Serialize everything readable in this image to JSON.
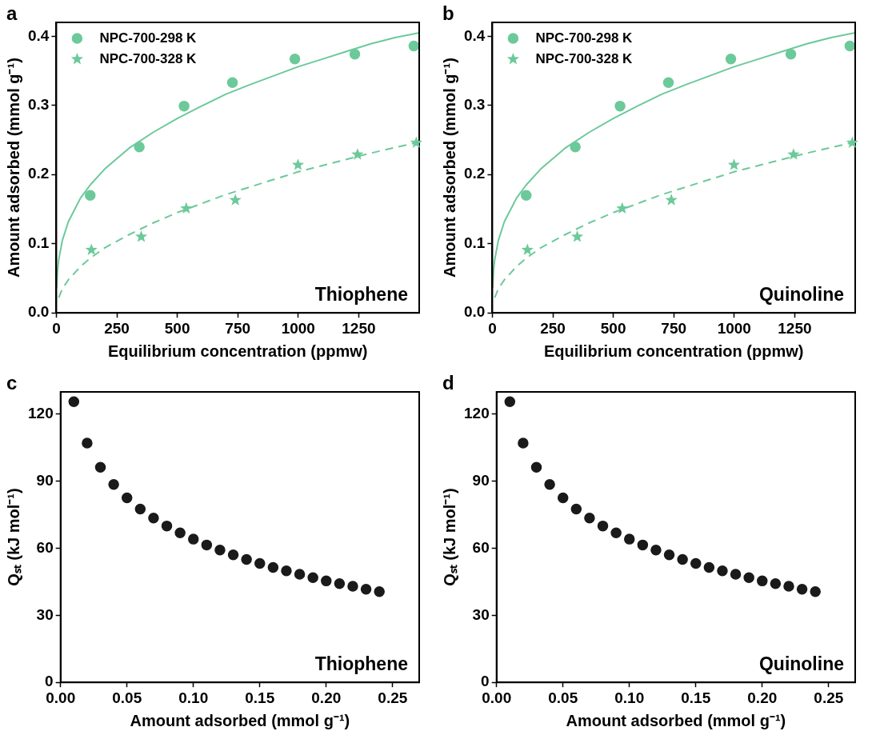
{
  "chart_data": [
    {
      "type": "scatter",
      "xlabel": "Equilibrium concentration (ppmw)",
      "ylabel": "Amount adsorbed (mmol g⁻¹)",
      "annotations": [
        "a",
        "Thiophene"
      ],
      "legend": "top left",
      "xlim": [
        0,
        1500
      ],
      "ylim": [
        0,
        0.42
      ],
      "xticks": [
        0,
        250,
        500,
        750,
        1000,
        1250
      ],
      "yticks": [
        {
          "value": 0,
          "label": "0.0"
        },
        0.1,
        0.2,
        0.3,
        0.4
      ],
      "series": [
        {
          "name": "NPC-700-298 K",
          "type": "scatter",
          "marker": "circle",
          "color": "#6cc99a",
          "x": [
            140,
            343,
            528,
            728,
            986,
            1234,
            1478
          ],
          "values": [
            0.17,
            0.24,
            0.299,
            0.333,
            0.367,
            0.374,
            0.386
          ]
        },
        {
          "name": "NPC-700-328 K",
          "type": "scatter",
          "marker": "star",
          "color": "#6cc99a",
          "x": [
            145,
            351,
            537,
            740,
            999,
            1245,
            1488
          ],
          "values": [
            0.091,
            0.11,
            0.151,
            0.163,
            0.214,
            0.229,
            0.246
          ]
        },
        {
          "type": "line",
          "line_style": "solid",
          "marker": "none",
          "color": "#6cc99a",
          "x": [
            1,
            5,
            10,
            25,
            50,
            100,
            140,
            200,
            300,
            400,
            500,
            600,
            700,
            800,
            900,
            1000,
            1100,
            1200,
            1300,
            1400,
            1500
          ],
          "values": [
            0.036,
            0.062,
            0.077,
            0.105,
            0.132,
            0.166,
            0.185,
            0.208,
            0.238,
            0.261,
            0.281,
            0.299,
            0.316,
            0.33,
            0.343,
            0.356,
            0.367,
            0.378,
            0.389,
            0.398,
            0.405
          ]
        },
        {
          "type": "line",
          "line_style": "dashed",
          "marker": "none",
          "color": "#6cc99a",
          "x": [
            10,
            25,
            50,
            100,
            140,
            200,
            300,
            400,
            500,
            600,
            700,
            800,
            900,
            1000,
            1100,
            1200,
            1300,
            1400,
            1500
          ],
          "values": [
            0.022,
            0.035,
            0.048,
            0.067,
            0.079,
            0.094,
            0.113,
            0.13,
            0.145,
            0.158,
            0.171,
            0.182,
            0.193,
            0.204,
            0.213,
            0.222,
            0.231,
            0.239,
            0.247
          ]
        }
      ]
    },
    {
      "type": "scatter",
      "xlabel": "Equilibrium concentration (ppmw)",
      "ylabel": "Amount adsorbed (mmol g⁻¹)",
      "annotations": [
        "b",
        "Quinoline"
      ],
      "legend": "top left",
      "xlim": [
        0,
        1500
      ],
      "ylim": [
        0,
        0.42
      ],
      "xticks": [
        0,
        250,
        500,
        750,
        1000,
        1250
      ],
      "yticks": [
        {
          "value": 0,
          "label": "0.0"
        },
        0.1,
        0.2,
        0.3,
        0.4
      ],
      "series": [
        {
          "name": "NPC-700-298 K",
          "type": "scatter",
          "marker": "circle",
          "color": "#6cc99a",
          "x": [
            140,
            343,
            528,
            728,
            986,
            1234,
            1478
          ],
          "values": [
            0.17,
            0.24,
            0.299,
            0.333,
            0.367,
            0.374,
            0.386
          ]
        },
        {
          "name": "NPC-700-328 K",
          "type": "scatter",
          "marker": "star",
          "color": "#6cc99a",
          "x": [
            145,
            351,
            537,
            740,
            999,
            1245,
            1488
          ],
          "values": [
            0.091,
            0.11,
            0.151,
            0.163,
            0.214,
            0.229,
            0.246
          ]
        },
        {
          "type": "line",
          "line_style": "solid",
          "marker": "none",
          "color": "#6cc99a",
          "x": [
            1,
            5,
            10,
            25,
            50,
            100,
            140,
            200,
            300,
            400,
            500,
            600,
            700,
            800,
            900,
            1000,
            1100,
            1200,
            1300,
            1400,
            1500
          ],
          "values": [
            0.036,
            0.062,
            0.077,
            0.105,
            0.132,
            0.166,
            0.185,
            0.208,
            0.238,
            0.261,
            0.281,
            0.299,
            0.316,
            0.33,
            0.343,
            0.356,
            0.367,
            0.378,
            0.389,
            0.398,
            0.405
          ]
        },
        {
          "type": "line",
          "line_style": "dashed",
          "marker": "none",
          "color": "#6cc99a",
          "x": [
            10,
            25,
            50,
            100,
            140,
            200,
            300,
            400,
            500,
            600,
            700,
            800,
            900,
            1000,
            1100,
            1200,
            1300,
            1400,
            1500
          ],
          "values": [
            0.022,
            0.035,
            0.048,
            0.067,
            0.079,
            0.094,
            0.113,
            0.13,
            0.145,
            0.158,
            0.171,
            0.182,
            0.193,
            0.204,
            0.213,
            0.222,
            0.231,
            0.239,
            0.247
          ]
        }
      ]
    },
    {
      "type": "scatter",
      "xlabel": "Amount adsorbed (mmol g⁻¹)",
      "ylabel": "Qₛₜ (kJ mol⁻¹)",
      "annotations": [
        "c",
        "Thiophene"
      ],
      "marker": "circle",
      "xlim": [
        0,
        0.27
      ],
      "ylim": [
        0,
        130
      ],
      "xticks": [
        {
          "value": 0,
          "label": "0.00"
        },
        {
          "value": 0.05,
          "label": "0.05"
        },
        {
          "value": 0.1,
          "label": "0.10"
        },
        {
          "value": 0.15,
          "label": "0.15"
        },
        {
          "value": 0.2,
          "label": "0.20"
        },
        {
          "value": 0.25,
          "label": "0.25"
        }
      ],
      "yticks": [
        0,
        30,
        60,
        90,
        120
      ],
      "series": [
        {
          "color": "#1a1a1a",
          "x": [
            0.01,
            0.02,
            0.03,
            0.04,
            0.05,
            0.06,
            0.07,
            0.08,
            0.09,
            0.1,
            0.11,
            0.12,
            0.13,
            0.14,
            0.15,
            0.16,
            0.17,
            0.18,
            0.19,
            0.2,
            0.21,
            0.22,
            0.23,
            0.24
          ],
          "values": [
            125.6,
            107.1,
            96.3,
            88.6,
            82.6,
            77.6,
            73.5,
            70.0,
            66.9,
            64.1,
            61.5,
            59.2,
            57.1,
            55.0,
            53.2,
            51.4,
            49.9,
            48.4,
            46.9,
            45.4,
            44.2,
            43.0,
            41.7,
            40.6
          ]
        }
      ]
    },
    {
      "type": "scatter",
      "xlabel": "Amount adsorbed (mmol g⁻¹)",
      "ylabel": "Qₛₜ (kJ mol⁻¹)",
      "annotations": [
        "d",
        "Quinoline"
      ],
      "marker": "circle",
      "xlim": [
        0,
        0.27
      ],
      "ylim": [
        0,
        130
      ],
      "xticks": [
        {
          "value": 0,
          "label": "0.00"
        },
        {
          "value": 0.05,
          "label": "0.05"
        },
        {
          "value": 0.1,
          "label": "0.10"
        },
        {
          "value": 0.15,
          "label": "0.15"
        },
        {
          "value": 0.2,
          "label": "0.20"
        },
        {
          "value": 0.25,
          "label": "0.25"
        }
      ],
      "yticks": [
        0,
        30,
        60,
        90,
        120
      ],
      "series": [
        {
          "color": "#1a1a1a",
          "x": [
            0.01,
            0.02,
            0.03,
            0.04,
            0.05,
            0.06,
            0.07,
            0.08,
            0.09,
            0.1,
            0.11,
            0.12,
            0.13,
            0.14,
            0.15,
            0.16,
            0.17,
            0.18,
            0.19,
            0.2,
            0.21,
            0.22,
            0.23,
            0.24
          ],
          "values": [
            125.6,
            107.1,
            96.3,
            88.6,
            82.6,
            77.6,
            73.5,
            70.0,
            66.9,
            64.1,
            61.5,
            59.2,
            57.1,
            55.0,
            53.2,
            51.4,
            49.9,
            48.4,
            46.9,
            45.4,
            44.2,
            43.0,
            41.7,
            40.6
          ]
        }
      ]
    }
  ]
}
